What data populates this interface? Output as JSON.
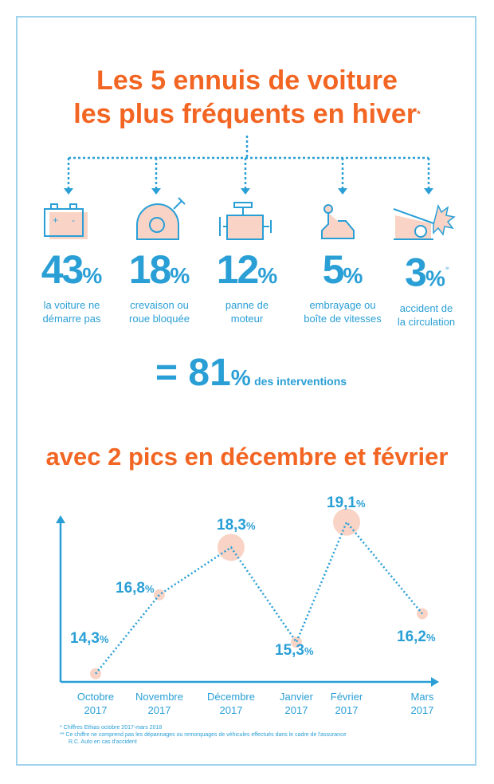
{
  "title": {
    "line1": "Les 5 ennuis de voiture",
    "line2": "les plus fréquents en hiver",
    "mark": "*"
  },
  "items": [
    {
      "icon": "battery-icon",
      "value": "43",
      "unit": "%",
      "label1": "la voiture ne",
      "label2": "démarre pas"
    },
    {
      "icon": "flat-tire-icon",
      "value": "18",
      "unit": "%",
      "label1": "crevaison ou",
      "label2": "roue bloquée"
    },
    {
      "icon": "engine-icon",
      "value": "12",
      "unit": "%",
      "label1": "panne de",
      "label2": "moteur"
    },
    {
      "icon": "gear-shift-icon",
      "value": "5",
      "unit": "%",
      "label1": "embrayage ou",
      "label2": "boîte de vitesses"
    },
    {
      "icon": "car-crash-icon",
      "value": "3",
      "unit": "%",
      "label1": "accident de",
      "label2": "la circulation",
      "mark": "**"
    }
  ],
  "total": {
    "prefix": "= 81",
    "unit": "%",
    "text": "des interventions"
  },
  "subtitle": "avec 2 pics en décembre et février",
  "colors": {
    "orange": "#f26522",
    "blue": "#2a9fd6",
    "peach": "#f9d4c6"
  },
  "chart_data": {
    "type": "line",
    "categories": [
      "Octobre 2017",
      "Novembre 2017",
      "Décembre 2017",
      "Janvier 2017",
      "Février 2017",
      "Mars 2017"
    ],
    "x_labels": [
      [
        "Octobre",
        "2017"
      ],
      [
        "Novembre",
        "2017"
      ],
      [
        "Décembre",
        "2017"
      ],
      [
        "Janvier",
        "2017"
      ],
      [
        "Février",
        "2017"
      ],
      [
        "Mars",
        "2017"
      ]
    ],
    "values": [
      14.3,
      16.8,
      18.3,
      15.3,
      19.1,
      16.2
    ],
    "labels": [
      "14,3",
      "16,8",
      "18,3",
      "15,3",
      "19,1",
      "16,2"
    ],
    "unit": "%",
    "highlighted": [
      "Décembre 2017",
      "Février 2017"
    ]
  },
  "footnotes": [
    "*  Chiffres Ethias octobre 2017-mars 2018",
    "** Ce chiffre ne comprend pas les dépannages ou remorquages de véhicules effectués dans le cadre de l'assurance",
    "R.C. Auto en cas d'accident"
  ]
}
